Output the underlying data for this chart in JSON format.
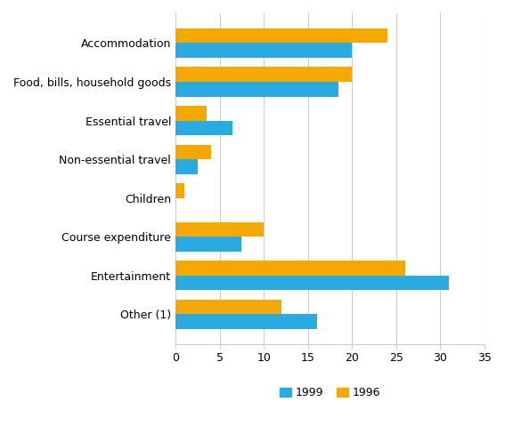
{
  "categories": [
    "Accommodation",
    "Food, bills, household goods",
    "Essential travel",
    "Non-essential travel",
    "Children",
    "Course expenditure",
    "Entertainment",
    "Other (1)"
  ],
  "values_1999": [
    20,
    18.5,
    6.5,
    2.5,
    0,
    7.5,
    31,
    16
  ],
  "values_1996": [
    24,
    20,
    3.5,
    4,
    1,
    10,
    26,
    12
  ],
  "color_1999": "#29ABE2",
  "color_1996": "#F5A800",
  "xlim": [
    0,
    35
  ],
  "xticks": [
    0,
    5,
    10,
    15,
    20,
    25,
    30,
    35
  ],
  "legend_labels": [
    "1999",
    "1996"
  ],
  "bar_height": 0.38,
  "plot_bg_color": "#ffffff"
}
